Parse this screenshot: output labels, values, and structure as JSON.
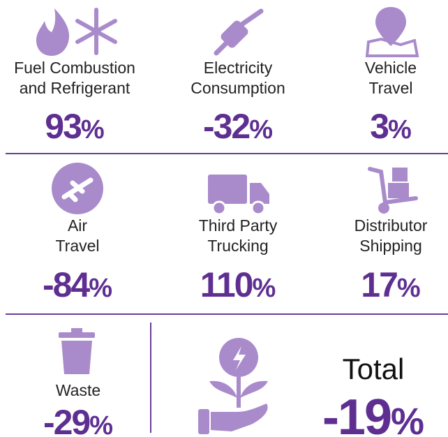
{
  "items": [
    {
      "label": [
        "Fuel Combustion",
        "and Refrigerant"
      ],
      "value": 93,
      "unit": "%"
    },
    {
      "label": [
        "Electricity",
        "Consumption"
      ],
      "value": -32,
      "unit": "%"
    },
    {
      "label": [
        "Vehicle",
        "Travel"
      ],
      "value": 3,
      "unit": "%"
    },
    {
      "label": [
        "Air",
        "Travel"
      ],
      "value": -84,
      "unit": "%"
    },
    {
      "label": [
        "Third Party",
        "Trucking"
      ],
      "value": 110,
      "unit": "%"
    },
    {
      "label": [
        "Distributor",
        "Shipping"
      ],
      "value": 17,
      "unit": "%"
    },
    {
      "label": [
        "Waste"
      ],
      "value": -29,
      "unit": "%"
    }
  ],
  "total": {
    "label": "Total",
    "value": -19,
    "unit": "%"
  }
}
